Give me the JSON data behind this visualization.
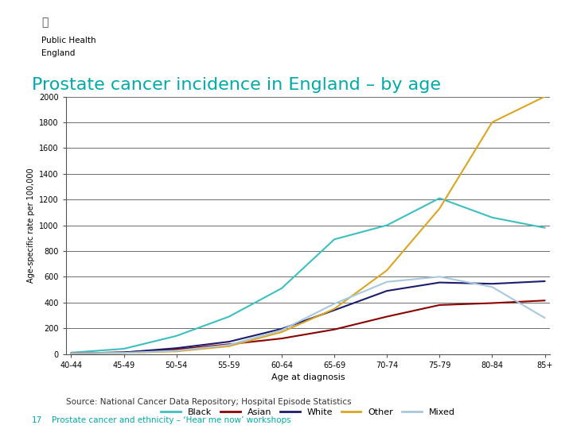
{
  "title": "Prostate cancer incidence in England – by age",
  "title_color": "#00AAAA",
  "xlabel": "Age at diagnosis",
  "ylabel": "Age-specific rate per 100,000",
  "age_groups": [
    "40-44",
    "45-49",
    "50-54",
    "55-59",
    "60-64",
    "65-69",
    "70-74",
    "75-79",
    "80-84",
    "85+"
  ],
  "series": {
    "Black": [
      10,
      40,
      140,
      290,
      510,
      890,
      1000,
      1210,
      1060,
      980
    ],
    "Asian": [
      5,
      12,
      35,
      75,
      120,
      190,
      290,
      380,
      395,
      415
    ],
    "White": [
      5,
      12,
      45,
      95,
      195,
      340,
      490,
      555,
      545,
      565
    ],
    "Other": [
      5,
      8,
      20,
      60,
      170,
      350,
      650,
      1130,
      1800,
      2000
    ],
    "Mixed": [
      5,
      8,
      25,
      70,
      185,
      390,
      560,
      600,
      520,
      280
    ]
  },
  "colors": {
    "Black": "#3DBFBF",
    "Asian": "#8B0000",
    "White": "#1C1C6E",
    "Other": "#DAA520",
    "Mixed": "#A8C8E0"
  },
  "ylim": [
    0,
    2000
  ],
  "yticks": [
    0,
    200,
    400,
    600,
    800,
    1000,
    1200,
    1400,
    1600,
    1800,
    2000
  ],
  "source_text": "Source: National Cancer Data Repository; Hospital Episode Statistics",
  "footer_number": "17",
  "footer_text": "Prostate cancer and ethnicity – ‘Hear me now’ workshops",
  "footer_color": "#00AAAA",
  "background_color": "#FFFFFF",
  "logo_line_color": "#3DBFBF",
  "logo_text_color": "#000000"
}
